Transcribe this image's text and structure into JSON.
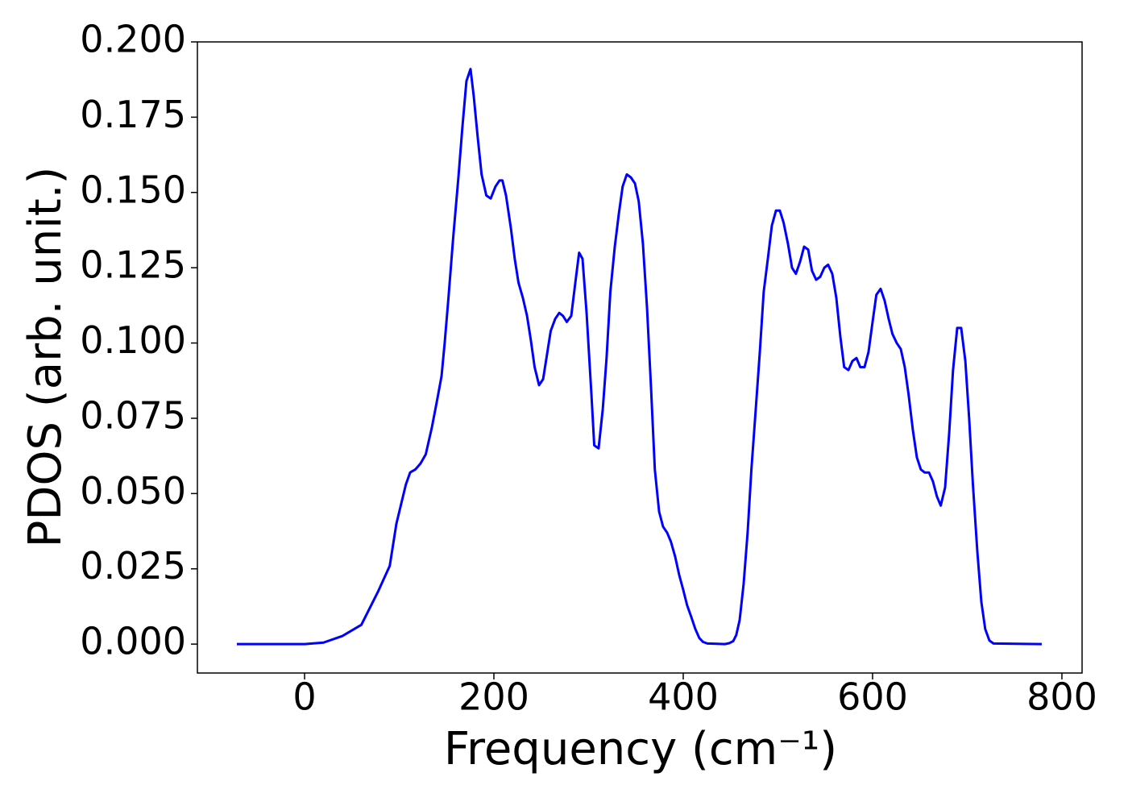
{
  "chart_data": {
    "type": "line",
    "xlabel": "Frequency (cm⁻¹)",
    "ylabel": "PDOS (arb. unit.)",
    "xlim": [
      -113.2,
      821.3
    ],
    "ylim": [
      -0.0096,
      0.2
    ],
    "xticks": [
      0,
      200,
      400,
      600,
      800
    ],
    "yticks": [
      {
        "value": 0,
        "label": "0.000"
      },
      {
        "value": 0.025,
        "label": "0.025"
      },
      {
        "value": 0.05,
        "label": "0.050"
      },
      {
        "value": 0.075,
        "label": "0.075"
      },
      {
        "value": 0.1,
        "label": "0.100"
      },
      {
        "value": 0.125,
        "label": "0.125"
      },
      {
        "value": 0.15,
        "label": "0.150"
      },
      {
        "value": 0.175,
        "label": "0.175"
      },
      {
        "value": 0.2,
        "label": "0.200"
      }
    ],
    "x": [
      -71.5,
      0,
      20,
      40,
      60,
      78,
      90,
      97,
      107,
      111.5,
      117,
      122.5,
      128,
      134.5,
      140,
      144.7,
      148,
      152,
      157,
      162.5,
      166.8,
      171,
      175.3,
      178.7,
      183,
      187,
      192,
      196.6,
      201.7,
      206,
      209,
      212.8,
      218,
      222,
      226,
      230.6,
      235,
      239,
      243,
      247.7,
      252,
      256,
      260,
      264.7,
      269,
      273,
      277,
      281.7,
      286,
      290,
      293.6,
      297.9,
      303,
      306,
      310.6,
      315,
      319,
      323,
      327.7,
      332,
      336,
      340.4,
      344.7,
      349,
      353,
      357.4,
      361.7,
      366,
      370,
      374.5,
      378.7,
      383,
      387,
      391.5,
      395.7,
      400,
      404,
      408.5,
      412.8,
      417,
      421,
      425.5,
      444,
      448.5,
      452.8,
      456,
      459.6,
      463.8,
      468,
      472,
      476.6,
      480.9,
      485,
      489.4,
      493.6,
      498,
      502,
      506,
      510.6,
      514.9,
      519,
      523.4,
      527.7,
      532,
      536,
      540.4,
      544.7,
      549,
      553,
      557.4,
      561.7,
      566,
      570,
      574.5,
      578.7,
      583,
      587,
      591.5,
      595.7,
      600,
      604,
      608.5,
      612.8,
      617,
      621,
      625.5,
      629.8,
      634,
      638,
      642.6,
      646.8,
      651,
      655,
      659.6,
      663.8,
      668,
      672,
      676.6,
      680.9,
      685,
      689.4,
      693.6,
      698,
      702,
      706,
      710.6,
      714.9,
      719,
      723.4,
      727.7,
      778.7
    ],
    "series": [
      {
        "color": "#0000ff",
        "values": [
          0,
          0,
          0.0005,
          0.0027,
          0.0064,
          0.0177,
          0.026,
          0.04,
          0.053,
          0.057,
          0.058,
          0.06,
          0.063,
          0.072,
          0.081,
          0.089,
          0.1,
          0.115,
          0.135,
          0.155,
          0.172,
          0.187,
          0.191,
          0.182,
          0.168,
          0.156,
          0.149,
          0.148,
          0.152,
          0.154,
          0.154,
          0.149,
          0.138,
          0.128,
          0.12,
          0.115,
          0.109,
          0.101,
          0.092,
          0.086,
          0.088,
          0.096,
          0.104,
          0.108,
          0.11,
          0.109,
          0.107,
          0.109,
          0.12,
          0.13,
          0.128,
          0.11,
          0.083,
          0.066,
          0.065,
          0.078,
          0.095,
          0.117,
          0.132,
          0.143,
          0.152,
          0.156,
          0.155,
          0.153,
          0.147,
          0.133,
          0.112,
          0.085,
          0.058,
          0.044,
          0.039,
          0.037,
          0.034,
          0.029,
          0.023,
          0.018,
          0.013,
          0.009,
          0.005,
          0.002,
          0.0007,
          0.0002,
          0,
          0.0003,
          0.001,
          0.003,
          0.008,
          0.02,
          0.037,
          0.058,
          0.078,
          0.097,
          0.117,
          0.128,
          0.139,
          0.144,
          0.144,
          0.14,
          0.133,
          0.125,
          0.123,
          0.127,
          0.132,
          0.131,
          0.124,
          0.121,
          0.122,
          0.125,
          0.126,
          0.123,
          0.115,
          0.102,
          0.092,
          0.091,
          0.094,
          0.095,
          0.092,
          0.092,
          0.097,
          0.107,
          0.116,
          0.118,
          0.114,
          0.108,
          0.103,
          0.1,
          0.098,
          0.092,
          0.083,
          0.071,
          0.062,
          0.058,
          0.057,
          0.057,
          0.054,
          0.049,
          0.046,
          0.052,
          0.07,
          0.091,
          0.105,
          0.105,
          0.094,
          0.075,
          0.053,
          0.031,
          0.014,
          0.005,
          0.0012,
          0.0002,
          0
        ]
      }
    ]
  }
}
